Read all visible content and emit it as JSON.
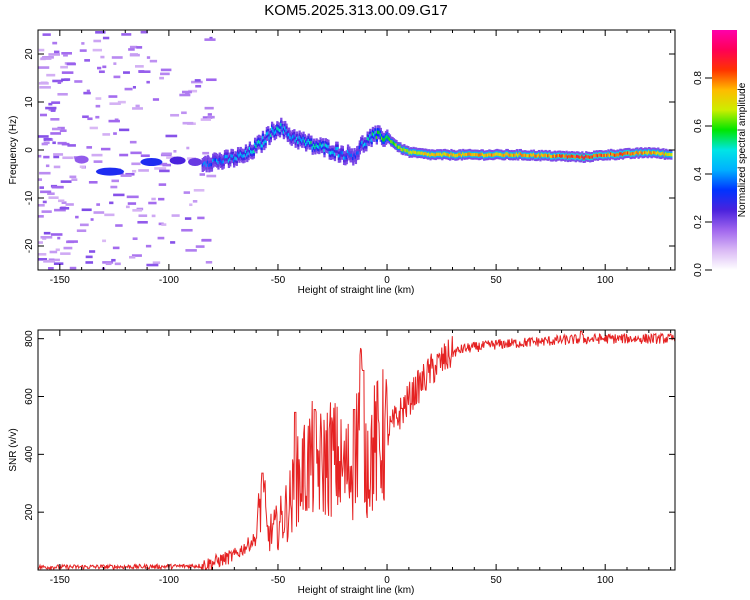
{
  "title": "KOM5.2025.313.00.09.G17",
  "chart_data": [
    {
      "type": "heatmap",
      "name": "spectrogram",
      "xlabel": "Height of straight line (km)",
      "ylabel": "Frequency (Hz)",
      "xlim": [
        -160,
        132
      ],
      "ylim": [
        -25,
        25
      ],
      "xticks": [
        -150,
        -100,
        -50,
        0,
        50,
        100
      ],
      "yticks": [
        -20,
        -10,
        0,
        10,
        20
      ],
      "colorbar": {
        "label": "Normalized spectral amplitude",
        "range": [
          0,
          1
        ],
        "ticks": [
          "0.0",
          "0.2",
          "0.4",
          "0.6",
          "0.8"
        ],
        "colors": [
          "#ffffff",
          "#d9b8f5",
          "#a066ee",
          "#4a22dd",
          "#0033ff",
          "#00b0ff",
          "#00e5e5",
          "#00e600",
          "#ccee00",
          "#ffbb00",
          "#ff3300",
          "#ff0055",
          "#ff00aa"
        ]
      },
      "ridge": {
        "description": "dominant frequency vs height",
        "height_km": [
          -85,
          -75,
          -65,
          -58,
          -55,
          -50,
          -45,
          -40,
          -35,
          -30,
          -25,
          -20,
          -15,
          -12,
          -8,
          -5,
          0,
          5,
          10,
          20,
          40,
          60,
          80,
          90,
          100,
          110,
          120,
          130
        ],
        "frequency_hz": [
          -2.5,
          -2.2,
          -1,
          1.5,
          3,
          5,
          3,
          2,
          1,
          0.5,
          0,
          -1,
          -1,
          1,
          2.5,
          3,
          2.5,
          0.5,
          -0.5,
          -1,
          -1,
          -1,
          -1.3,
          -1.5,
          -1,
          -0.8,
          -0.5,
          -1
        ],
        "amplitude": [
          0.35,
          0.4,
          0.45,
          0.5,
          0.45,
          0.5,
          0.4,
          0.45,
          0.5,
          0.5,
          0.45,
          0.4,
          0.35,
          0.4,
          0.5,
          0.55,
          0.6,
          0.65,
          0.7,
          0.72,
          0.75,
          0.75,
          0.8,
          0.85,
          0.8,
          0.8,
          0.75,
          0.7
        ]
      }
    },
    {
      "type": "line",
      "name": "snr",
      "xlabel": "Height of straight line (km)",
      "ylabel": "SNR (v/v)",
      "xlim": [
        -160,
        132
      ],
      "ylim": [
        0,
        830
      ],
      "xticks": [
        -150,
        -100,
        -50,
        0,
        50,
        100
      ],
      "yticks": [
        200,
        400,
        600,
        800
      ],
      "color": "#e52222",
      "envelope": {
        "height_km": [
          -160,
          -100,
          -85,
          -80,
          -70,
          -60,
          -57,
          -55,
          -50,
          -45,
          -40,
          -35,
          -30,
          -25,
          -20,
          -15,
          -12,
          -10,
          -5,
          0,
          5,
          10,
          15,
          20,
          25,
          30,
          35,
          40,
          50,
          60,
          70,
          80,
          90,
          100,
          110,
          120,
          132
        ],
        "snr": [
          10,
          12,
          15,
          25,
          50,
          110,
          300,
          120,
          150,
          220,
          320,
          380,
          360,
          400,
          340,
          360,
          600,
          380,
          430,
          470,
          530,
          590,
          640,
          690,
          720,
          750,
          765,
          770,
          780,
          785,
          790,
          795,
          798,
          800,
          800,
          800,
          800
        ]
      },
      "spikes": [
        {
          "height_km": -57,
          "snr": 335
        },
        {
          "height_km": -42,
          "snr": 545
        },
        {
          "height_km": -33,
          "snr": 555
        },
        {
          "height_km": -15,
          "snr": 555
        },
        {
          "height_km": -11,
          "snr": 690
        },
        {
          "height_km": 89,
          "snr": 825
        }
      ]
    }
  ]
}
